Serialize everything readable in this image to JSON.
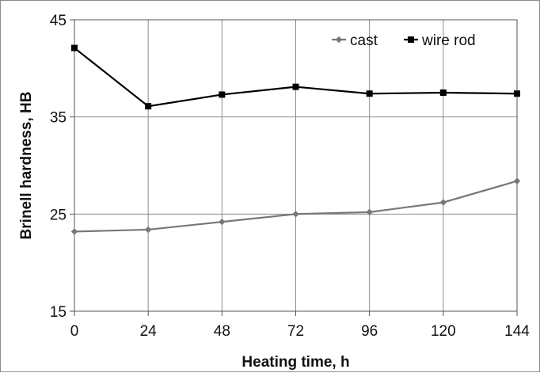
{
  "chart_data": {
    "type": "line",
    "title": "",
    "xlabel": "Heating time, h",
    "ylabel": "Brinell hardness, HB",
    "x": [
      0,
      24,
      48,
      72,
      96,
      120,
      144
    ],
    "x_ticks": [
      "0",
      "24",
      "48",
      "72",
      "96",
      "120",
      "144"
    ],
    "xlim": [
      0,
      144
    ],
    "ylim": [
      15,
      45
    ],
    "y_ticks": [
      "15",
      "25",
      "35",
      "45"
    ],
    "grid": true,
    "legend_position": "top-right",
    "series": [
      {
        "name": "cast",
        "marker": "diamond",
        "color": "#777777",
        "values": [
          23.2,
          23.4,
          24.2,
          25.0,
          25.2,
          26.2,
          28.4
        ]
      },
      {
        "name": "wire rod",
        "marker": "square",
        "color": "#000000",
        "values": [
          42.1,
          36.1,
          37.3,
          38.1,
          37.4,
          37.5,
          37.4
        ]
      }
    ]
  }
}
